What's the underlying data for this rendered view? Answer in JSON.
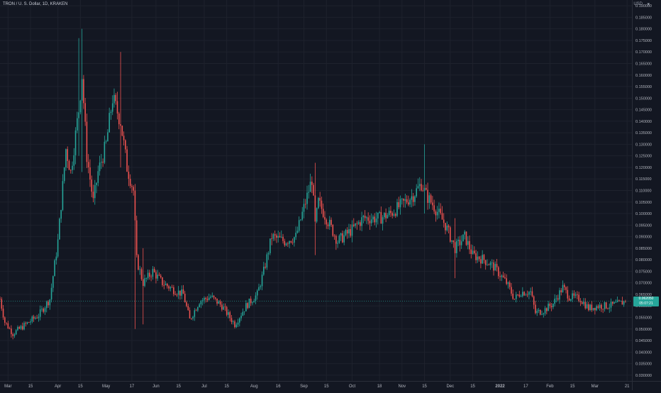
{
  "header": {
    "title": "TRON / U. S. Dollar, 1D, KRAKEN",
    "currency": "USD"
  },
  "price_tag": {
    "price": "0.062050",
    "countdown": "05:07:21"
  },
  "colors": {
    "up": "#26a69a",
    "down": "#ef5350",
    "background": "#131722",
    "grid": "#1e222d",
    "axis_text": "#b2b5be"
  },
  "chart_data": {
    "type": "candlestick",
    "y_axis_ticks": [
      "0.030000",
      "0.035000",
      "0.040000",
      "0.045000",
      "0.050000",
      "0.055000",
      "0.060000",
      "0.065000",
      "0.070000",
      "0.075000",
      "0.080000",
      "0.085000",
      "0.090000",
      "0.095000",
      "0.100000",
      "0.105000",
      "0.110000",
      "0.115000",
      "0.120000",
      "0.125000",
      "0.130000",
      "0.135000",
      "0.140000",
      "0.145000",
      "0.150000",
      "0.155000",
      "0.160000",
      "0.165000",
      "0.170000",
      "0.175000",
      "0.180000",
      "0.185000",
      "0.190000"
    ],
    "ylim": [
      0.0275,
      0.1925
    ],
    "x_range": [
      "2021-02-24",
      "2022-03-24"
    ],
    "x_axis_ticks": [
      {
        "label": "Mar",
        "date": "2021-03-01"
      },
      {
        "label": "15",
        "date": "2021-03-15"
      },
      {
        "label": "Apr",
        "date": "2021-04-01"
      },
      {
        "label": "15",
        "date": "2021-04-15"
      },
      {
        "label": "May",
        "date": "2021-05-01"
      },
      {
        "label": "17",
        "date": "2021-05-17"
      },
      {
        "label": "Jun",
        "date": "2021-06-01"
      },
      {
        "label": "15",
        "date": "2021-06-15"
      },
      {
        "label": "Jul",
        "date": "2021-07-01"
      },
      {
        "label": "15",
        "date": "2021-07-15"
      },
      {
        "label": "Aug",
        "date": "2021-08-01"
      },
      {
        "label": "16",
        "date": "2021-08-16"
      },
      {
        "label": "Sep",
        "date": "2021-09-01"
      },
      {
        "label": "15",
        "date": "2021-09-15"
      },
      {
        "label": "Oct",
        "date": "2021-10-01"
      },
      {
        "label": "18",
        "date": "2021-10-18"
      },
      {
        "label": "Nov",
        "date": "2021-11-01"
      },
      {
        "label": "15",
        "date": "2021-11-15"
      },
      {
        "label": "Dec",
        "date": "2021-12-01"
      },
      {
        "label": "15",
        "date": "2021-12-15"
      },
      {
        "label": "2022",
        "date": "2022-01-01"
      },
      {
        "label": "17",
        "date": "2022-01-17"
      },
      {
        "label": "Feb",
        "date": "2022-02-01"
      },
      {
        "label": "15",
        "date": "2022-02-15"
      },
      {
        "label": "Mar",
        "date": "2022-03-01"
      },
      {
        "label": "21",
        "date": "2022-03-21"
      }
    ],
    "anchors": [
      {
        "date": "2021-02-24",
        "close": 0.063
      },
      {
        "date": "2021-02-27",
        "close": 0.053
      },
      {
        "date": "2021-03-04",
        "close": 0.048
      },
      {
        "date": "2021-03-12",
        "close": 0.052
      },
      {
        "date": "2021-03-20",
        "close": 0.056
      },
      {
        "date": "2021-03-27",
        "close": 0.063
      },
      {
        "date": "2021-04-01",
        "close": 0.088
      },
      {
        "date": "2021-04-06",
        "close": 0.128
      },
      {
        "date": "2021-04-09",
        "close": 0.118
      },
      {
        "date": "2021-04-14",
        "close": 0.145
      },
      {
        "date": "2021-04-16",
        "close": 0.16
      },
      {
        "date": "2021-04-19",
        "close": 0.125
      },
      {
        "date": "2021-04-23",
        "close": 0.105
      },
      {
        "date": "2021-04-26",
        "close": 0.118
      },
      {
        "date": "2021-05-01",
        "close": 0.13
      },
      {
        "date": "2021-05-05",
        "close": 0.15
      },
      {
        "date": "2021-05-10",
        "close": 0.14
      },
      {
        "date": "2021-05-14",
        "close": 0.12
      },
      {
        "date": "2021-05-18",
        "close": 0.11
      },
      {
        "date": "2021-05-20",
        "close": 0.08
      },
      {
        "date": "2021-05-24",
        "close": 0.07
      },
      {
        "date": "2021-05-30",
        "close": 0.075
      },
      {
        "date": "2021-06-05",
        "close": 0.07
      },
      {
        "date": "2021-06-12",
        "close": 0.067
      },
      {
        "date": "2021-06-18",
        "close": 0.065
      },
      {
        "date": "2021-06-22",
        "close": 0.054
      },
      {
        "date": "2021-06-28",
        "close": 0.062
      },
      {
        "date": "2021-07-05",
        "close": 0.064
      },
      {
        "date": "2021-07-12",
        "close": 0.06
      },
      {
        "date": "2021-07-20",
        "close": 0.052
      },
      {
        "date": "2021-07-27",
        "close": 0.06
      },
      {
        "date": "2021-08-03",
        "close": 0.065
      },
      {
        "date": "2021-08-07",
        "close": 0.075
      },
      {
        "date": "2021-08-12",
        "close": 0.09
      },
      {
        "date": "2021-08-20",
        "close": 0.088
      },
      {
        "date": "2021-08-27",
        "close": 0.09
      },
      {
        "date": "2021-09-02",
        "close": 0.105
      },
      {
        "date": "2021-09-06",
        "close": 0.115
      },
      {
        "date": "2021-09-08",
        "close": 0.095
      },
      {
        "date": "2021-09-10",
        "close": 0.105
      },
      {
        "date": "2021-09-15",
        "close": 0.098
      },
      {
        "date": "2021-09-22",
        "close": 0.088
      },
      {
        "date": "2021-10-01",
        "close": 0.093
      },
      {
        "date": "2021-10-08",
        "close": 0.098
      },
      {
        "date": "2021-10-18",
        "close": 0.098
      },
      {
        "date": "2021-10-25",
        "close": 0.1
      },
      {
        "date": "2021-11-01",
        "close": 0.104
      },
      {
        "date": "2021-11-08",
        "close": 0.108
      },
      {
        "date": "2021-11-13",
        "close": 0.113
      },
      {
        "date": "2021-11-16",
        "close": 0.108
      },
      {
        "date": "2021-11-22",
        "close": 0.102
      },
      {
        "date": "2021-11-28",
        "close": 0.095
      },
      {
        "date": "2021-12-04",
        "close": 0.085
      },
      {
        "date": "2021-12-10",
        "close": 0.09
      },
      {
        "date": "2021-12-15",
        "close": 0.082
      },
      {
        "date": "2021-12-22",
        "close": 0.08
      },
      {
        "date": "2021-12-28",
        "close": 0.077
      },
      {
        "date": "2022-01-05",
        "close": 0.07
      },
      {
        "date": "2022-01-10",
        "close": 0.063
      },
      {
        "date": "2022-01-14",
        "close": 0.066
      },
      {
        "date": "2022-01-20",
        "close": 0.066
      },
      {
        "date": "2022-01-23",
        "close": 0.057
      },
      {
        "date": "2022-01-28",
        "close": 0.058
      },
      {
        "date": "2022-02-03",
        "close": 0.061
      },
      {
        "date": "2022-02-09",
        "close": 0.068
      },
      {
        "date": "2022-02-13",
        "close": 0.064
      },
      {
        "date": "2022-02-20",
        "close": 0.063
      },
      {
        "date": "2022-02-25",
        "close": 0.059
      },
      {
        "date": "2022-03-03",
        "close": 0.06
      },
      {
        "date": "2022-03-10",
        "close": 0.06
      },
      {
        "date": "2022-03-16",
        "close": 0.061
      },
      {
        "date": "2022-03-20",
        "close": 0.062
      }
    ],
    "notable_wicks": [
      {
        "date": "2021-04-16",
        "high": 0.18,
        "low": 0.118
      },
      {
        "date": "2021-04-14",
        "high": 0.176,
        "low": 0.125
      },
      {
        "date": "2021-05-10",
        "high": 0.17,
        "low": 0.12
      },
      {
        "date": "2021-05-19",
        "high": 0.112,
        "low": 0.05
      },
      {
        "date": "2021-05-24",
        "high": 0.085,
        "low": 0.052
      },
      {
        "date": "2021-09-08",
        "high": 0.122,
        "low": 0.082
      },
      {
        "date": "2021-11-15",
        "high": 0.13,
        "low": 0.1
      },
      {
        "date": "2021-12-04",
        "high": 0.098,
        "low": 0.072
      }
    ]
  }
}
